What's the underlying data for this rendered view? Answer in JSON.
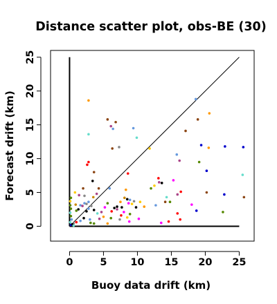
{
  "chart_data": {
    "type": "scatter",
    "title": "Distance scatter plot, obs-BE (30)",
    "xlabel": "Buoy data drift (km)",
    "ylabel": "Forecast drift (km)",
    "xlim": [
      -2.8,
      27.2
    ],
    "ylim": [
      -2.2,
      26.0
    ],
    "xticks": [
      0,
      5,
      10,
      15,
      20,
      25
    ],
    "yticks": [
      0,
      5,
      10,
      15,
      20,
      25
    ],
    "grid": false,
    "legend": "none",
    "reference_lines": [
      {
        "name": "diagonal",
        "x": [
          0,
          25
        ],
        "y": [
          0,
          25
        ],
        "color": "#000000"
      },
      {
        "name": "vertical-axis-line",
        "x": [
          0,
          0
        ],
        "y": [
          0,
          25
        ],
        "color": "#000000"
      },
      {
        "name": "horizontal-axis-line",
        "x": [
          0,
          25
        ],
        "y": [
          0,
          0
        ],
        "color": "#000000"
      }
    ],
    "points": [
      {
        "x": 2.8,
        "y": 18.6,
        "color": "#ff9900"
      },
      {
        "x": 2.8,
        "y": 13.6,
        "color": "#66ddcc"
      },
      {
        "x": 2.8,
        "y": 9.5,
        "color": "#ff0000"
      },
      {
        "x": 2.6,
        "y": 9.1,
        "color": "#ff0000"
      },
      {
        "x": 3.4,
        "y": 6.7,
        "color": "#000000"
      },
      {
        "x": 3.6,
        "y": 8.0,
        "color": "#8b4513"
      },
      {
        "x": 5.6,
        "y": 15.8,
        "color": "#8b4513"
      },
      {
        "x": 6.1,
        "y": 14.8,
        "color": "#aa4488"
      },
      {
        "x": 6.4,
        "y": 14.4,
        "color": "#6699dd"
      },
      {
        "x": 6.8,
        "y": 15.4,
        "color": "#8b4513"
      },
      {
        "x": 6.3,
        "y": 11.5,
        "color": "#8b4513"
      },
      {
        "x": 7.3,
        "y": 11.7,
        "color": "#888888"
      },
      {
        "x": 9.4,
        "y": 14.5,
        "color": "#6699dd"
      },
      {
        "x": 9.9,
        "y": 13.1,
        "color": "#66ddcc"
      },
      {
        "x": 11.8,
        "y": 11.5,
        "color": "#ffcc00"
      },
      {
        "x": 8.6,
        "y": 7.8,
        "color": "#ff0000"
      },
      {
        "x": 5.9,
        "y": 5.6,
        "color": "#6699dd"
      },
      {
        "x": 4.3,
        "y": 5.6,
        "color": "#8b4513"
      },
      {
        "x": 4.0,
        "y": 4.8,
        "color": "#aa4488"
      },
      {
        "x": 3.5,
        "y": 4.3,
        "color": "#cc8800"
      },
      {
        "x": 2.0,
        "y": 5.6,
        "color": "#8b4513"
      },
      {
        "x": 2.2,
        "y": 4.5,
        "color": "#888888"
      },
      {
        "x": 0.8,
        "y": 5.0,
        "color": "#ffcc00"
      },
      {
        "x": 1.4,
        "y": 4.6,
        "color": "#aa4488"
      },
      {
        "x": 0.9,
        "y": 3.2,
        "color": "#cc8800"
      },
      {
        "x": 1.6,
        "y": 3.1,
        "color": "#6699dd"
      },
      {
        "x": 1.9,
        "y": 3.0,
        "color": "#aa4488"
      },
      {
        "x": 2.2,
        "y": 3.4,
        "color": "#6699dd"
      },
      {
        "x": 2.5,
        "y": 3.3,
        "color": "#888888"
      },
      {
        "x": 2.8,
        "y": 3.6,
        "color": "#6699dd"
      },
      {
        "x": 3.2,
        "y": 3.0,
        "color": "#888888"
      },
      {
        "x": 1.3,
        "y": 2.5,
        "color": "#000000"
      },
      {
        "x": 1.0,
        "y": 2.3,
        "color": "#558800"
      },
      {
        "x": 2.5,
        "y": 2.2,
        "color": "#000000"
      },
      {
        "x": 2.8,
        "y": 2.6,
        "color": "#6699dd"
      },
      {
        "x": 3.6,
        "y": 2.4,
        "color": "#000000"
      },
      {
        "x": 4.1,
        "y": 1.9,
        "color": "#66ddcc"
      },
      {
        "x": 4.7,
        "y": 2.1,
        "color": "#aa4488"
      },
      {
        "x": 5.0,
        "y": 1.4,
        "color": "#ff9900"
      },
      {
        "x": 5.2,
        "y": 2.8,
        "color": "#ff00ff"
      },
      {
        "x": 5.6,
        "y": 3.4,
        "color": "#558800"
      },
      {
        "x": 6.2,
        "y": 2.2,
        "color": "#ff0000"
      },
      {
        "x": 6.6,
        "y": 2.7,
        "color": "#000000"
      },
      {
        "x": 7.0,
        "y": 2.5,
        "color": "#aa4488"
      },
      {
        "x": 7.0,
        "y": 2.9,
        "color": "#000000"
      },
      {
        "x": 7.5,
        "y": 3.6,
        "color": "#ff9900"
      },
      {
        "x": 7.7,
        "y": 2.8,
        "color": "#000000"
      },
      {
        "x": 8.0,
        "y": 2.1,
        "color": "#ff00ff"
      },
      {
        "x": 8.1,
        "y": 4.2,
        "color": "#cc8800"
      },
      {
        "x": 8.3,
        "y": 5.4,
        "color": "#ff9900"
      },
      {
        "x": 8.5,
        "y": 4.0,
        "color": "#000000"
      },
      {
        "x": 8.7,
        "y": 3.4,
        "color": "#ff00ff"
      },
      {
        "x": 8.9,
        "y": 3.9,
        "color": "#6699dd"
      },
      {
        "x": 8.9,
        "y": 1.8,
        "color": "#558800"
      },
      {
        "x": 9.2,
        "y": 3.3,
        "color": "#ffcc00"
      },
      {
        "x": 9.5,
        "y": 3.7,
        "color": "#888888"
      },
      {
        "x": 9.8,
        "y": 2.8,
        "color": "#000000"
      },
      {
        "x": 8.8,
        "y": 0.7,
        "color": "#ff00ff"
      },
      {
        "x": 8.5,
        "y": 1.3,
        "color": "#ffcc00"
      },
      {
        "x": 7.6,
        "y": 1.6,
        "color": "#ff0000"
      },
      {
        "x": 7.4,
        "y": 1.0,
        "color": "#888888"
      },
      {
        "x": 6.1,
        "y": 1.2,
        "color": "#558800"
      },
      {
        "x": 5.6,
        "y": 0.4,
        "color": "#ff9900"
      },
      {
        "x": 4.4,
        "y": 1.1,
        "color": "#aa4488"
      },
      {
        "x": 3.0,
        "y": 1.0,
        "color": "#6699dd"
      },
      {
        "x": 3.1,
        "y": 0.5,
        "color": "#558800"
      },
      {
        "x": 3.6,
        "y": 0.4,
        "color": "#558800"
      },
      {
        "x": 2.1,
        "y": 1.2,
        "color": "#000000"
      },
      {
        "x": 1.6,
        "y": 0.8,
        "color": "#6699dd"
      },
      {
        "x": 0.6,
        "y": 0.4,
        "color": "#888888"
      },
      {
        "x": 1.0,
        "y": 0.6,
        "color": "#ff0000"
      },
      {
        "x": 10.2,
        "y": 1.1,
        "color": "#ff00ff"
      },
      {
        "x": 10.4,
        "y": 3.6,
        "color": "#ffcc00"
      },
      {
        "x": 11.0,
        "y": 2.9,
        "color": "#ff9900"
      },
      {
        "x": 12.0,
        "y": 5.6,
        "color": "#558800"
      },
      {
        "x": 12.5,
        "y": 6.0,
        "color": "#ffcc00"
      },
      {
        "x": 12.7,
        "y": 3.1,
        "color": "#6699dd"
      },
      {
        "x": 13.1,
        "y": 7.1,
        "color": "#ff0000"
      },
      {
        "x": 13.2,
        "y": 6.5,
        "color": "#aa4488"
      },
      {
        "x": 13.6,
        "y": 6.4,
        "color": "#000000"
      },
      {
        "x": 13.5,
        "y": 0.5,
        "color": "#ff00ff"
      },
      {
        "x": 14.1,
        "y": 3.6,
        "color": "#8b4513"
      },
      {
        "x": 14.3,
        "y": 4.3,
        "color": "#66ddcc"
      },
      {
        "x": 14.6,
        "y": 0.7,
        "color": "#ff0000"
      },
      {
        "x": 14.8,
        "y": 3.6,
        "color": "#558800"
      },
      {
        "x": 15.3,
        "y": 6.8,
        "color": "#ff00ff"
      },
      {
        "x": 15.9,
        "y": 4.7,
        "color": "#aa4488"
      },
      {
        "x": 15.9,
        "y": 1.9,
        "color": "#ff0000"
      },
      {
        "x": 16.4,
        "y": 5.1,
        "color": "#ff0000"
      },
      {
        "x": 16.3,
        "y": 1.0,
        "color": "#ff0000"
      },
      {
        "x": 15.8,
        "y": 10.6,
        "color": "#6699dd"
      },
      {
        "x": 16.2,
        "y": 9.7,
        "color": "#aa4488"
      },
      {
        "x": 17.1,
        "y": 14.1,
        "color": "#8b4513"
      },
      {
        "x": 18.0,
        "y": 3.2,
        "color": "#ff00ff"
      },
      {
        "x": 18.7,
        "y": 2.3,
        "color": "#0000cc"
      },
      {
        "x": 18.6,
        "y": 18.8,
        "color": "#6699dd"
      },
      {
        "x": 18.9,
        "y": 15.8,
        "color": "#8b4513"
      },
      {
        "x": 19.1,
        "y": 9.5,
        "color": "#558800"
      },
      {
        "x": 19.4,
        "y": 12.0,
        "color": "#0000cc"
      },
      {
        "x": 20.2,
        "y": 8.2,
        "color": "#0000cc"
      },
      {
        "x": 20.2,
        "y": 5.0,
        "color": "#8b4513"
      },
      {
        "x": 20.5,
        "y": 11.6,
        "color": "#ff9900"
      },
      {
        "x": 20.6,
        "y": 16.7,
        "color": "#ff9900"
      },
      {
        "x": 22.9,
        "y": 11.8,
        "color": "#0000cc"
      },
      {
        "x": 22.8,
        "y": 4.7,
        "color": "#0000cc"
      },
      {
        "x": 22.6,
        "y": 2.1,
        "color": "#558800"
      },
      {
        "x": 25.6,
        "y": 11.7,
        "color": "#0000cc"
      },
      {
        "x": 25.5,
        "y": 7.6,
        "color": "#66ddcc"
      },
      {
        "x": 25.7,
        "y": 4.3,
        "color": "#8b4513"
      },
      {
        "x": 0.2,
        "y": 0.2,
        "color": "#0000cc"
      },
      {
        "x": 0.1,
        "y": 0.6,
        "color": "#66ddcc"
      },
      {
        "x": 0.3,
        "y": 1.0,
        "color": "#6699dd"
      },
      {
        "x": 0.2,
        "y": 1.5,
        "color": "#558800"
      },
      {
        "x": 0.1,
        "y": 2.0,
        "color": "#66ddcc"
      },
      {
        "x": 0.2,
        "y": 2.6,
        "color": "#558800"
      },
      {
        "x": 0.1,
        "y": 3.1,
        "color": "#558800"
      },
      {
        "x": 0.1,
        "y": 3.7,
        "color": "#ffcc00"
      },
      {
        "x": 0.2,
        "y": 4.2,
        "color": "#558800"
      },
      {
        "x": 0.4,
        "y": 0.3,
        "color": "#000000"
      },
      {
        "x": 0.6,
        "y": 0.1,
        "color": "#66ddcc"
      }
    ]
  }
}
